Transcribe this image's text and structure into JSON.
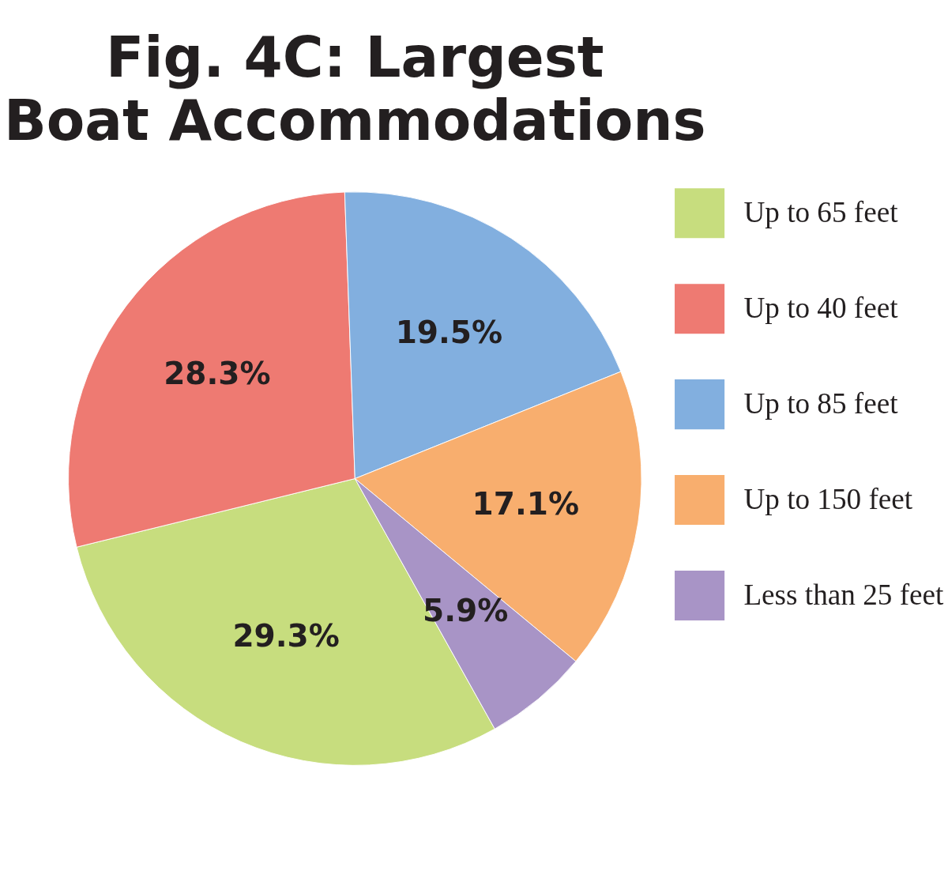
{
  "chart_data": {
    "type": "pie",
    "title": "Fig. 4C: Largest Boat Accommodations",
    "categories": [
      "Up to 65 feet",
      "Up to 40 feet",
      "Up to 85 feet",
      "Up to 150 feet",
      "Less than 25 feet"
    ],
    "values": [
      29.3,
      28.3,
      19.5,
      17.1,
      5.9
    ],
    "colors": [
      "#c7dd7e",
      "#ee7a72",
      "#82afdf",
      "#f8ae6e",
      "#a894c6"
    ],
    "value_labels": [
      "29.3%",
      "28.3%",
      "19.5%",
      "17.1%",
      "5.9%"
    ],
    "legend": "right"
  }
}
